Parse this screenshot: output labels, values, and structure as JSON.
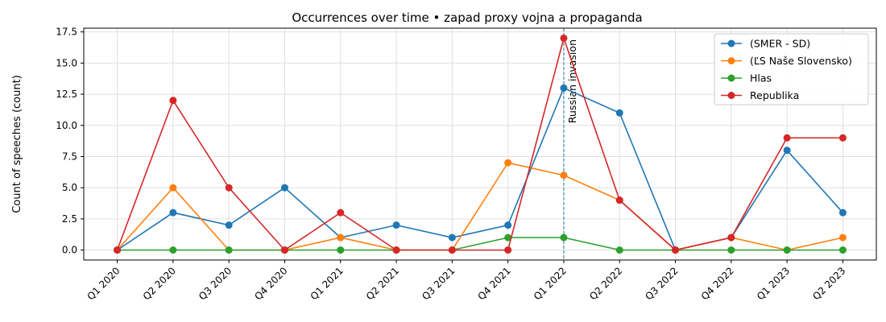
{
  "chart_data": {
    "type": "line",
    "title": "Occurrences over time • zapad proxy vojna a propaganda",
    "xlabel": "",
    "ylabel": "Count of speeches (count)",
    "categories": [
      "Q1 2020",
      "Q2 2020",
      "Q3 2020",
      "Q4 2020",
      "Q1 2021",
      "Q2 2021",
      "Q3 2021",
      "Q4 2021",
      "Q1 2022",
      "Q2 2022",
      "Q3 2022",
      "Q4 2022",
      "Q1 2023",
      "Q2 2023"
    ],
    "ylim": [
      -0.8,
      17.8
    ],
    "yticks": [
      0.0,
      2.5,
      5.0,
      7.5,
      10.0,
      12.5,
      15.0,
      17.5
    ],
    "ytick_labels": [
      "0.0",
      "2.5",
      "5.0",
      "7.5",
      "10.0",
      "12.5",
      "15.0",
      "17.5"
    ],
    "grid": true,
    "legend_position": "top-right",
    "series": [
      {
        "name": "(SMER - SD)",
        "color": "#1f77b4",
        "values": [
          0,
          3,
          2,
          5,
          1,
          2,
          1,
          2,
          13,
          11,
          0,
          1,
          8,
          3
        ]
      },
      {
        "name": "(ĽS Naše Slovensko)",
        "color": "#ff7f0e",
        "values": [
          0,
          5,
          0,
          0,
          1,
          0,
          0,
          7,
          6,
          4,
          0,
          1,
          0,
          1
        ]
      },
      {
        "name": "Hlas",
        "color": "#2ca02c",
        "values": [
          0,
          0,
          0,
          0,
          0,
          0,
          0,
          1,
          1,
          0,
          0,
          0,
          0,
          0
        ]
      },
      {
        "name": "Republika",
        "color": "#d62728",
        "values": [
          0,
          12,
          5,
          0,
          3,
          0,
          0,
          0,
          17,
          4,
          0,
          1,
          9,
          9
        ]
      }
    ],
    "annotations": [
      {
        "category": "Q1 2022",
        "label": "Russian invasion",
        "style": "dashed-vertical-line",
        "color": "#1f77b4"
      }
    ]
  }
}
